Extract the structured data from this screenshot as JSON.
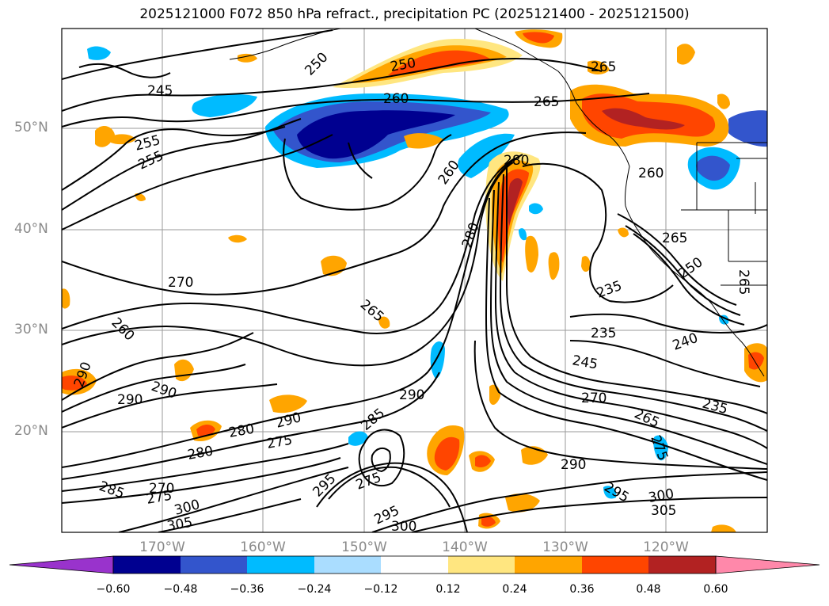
{
  "title": "2025121000 F072 850 hPa refract., precipitation PC (2025121400 - 2025121500)",
  "map": {
    "lat_labels": [
      "50°N",
      "40°N",
      "30°N",
      "20°N"
    ],
    "lon_labels": [
      "170°W",
      "160°W",
      "150°W",
      "140°W",
      "130°W",
      "120°W"
    ]
  },
  "contour_labels": [
    {
      "text": "245"
    },
    {
      "text": "250"
    },
    {
      "text": "250"
    },
    {
      "text": "255"
    },
    {
      "text": "255"
    },
    {
      "text": "260"
    },
    {
      "text": "265"
    },
    {
      "text": "265"
    },
    {
      "text": "260"
    },
    {
      "text": "280"
    },
    {
      "text": "280"
    },
    {
      "text": "270"
    },
    {
      "text": "265"
    },
    {
      "text": "260"
    },
    {
      "text": "265"
    },
    {
      "text": "250"
    },
    {
      "text": "265"
    },
    {
      "text": "235"
    },
    {
      "text": "235"
    },
    {
      "text": "240"
    },
    {
      "text": "245"
    },
    {
      "text": "270"
    },
    {
      "text": "265"
    },
    {
      "text": "235"
    },
    {
      "text": "275"
    },
    {
      "text": "290"
    },
    {
      "text": "295"
    },
    {
      "text": "290"
    },
    {
      "text": "290"
    },
    {
      "text": "290"
    },
    {
      "text": "280"
    },
    {
      "text": "275"
    },
    {
      "text": "285"
    },
    {
      "text": "290"
    },
    {
      "text": "280"
    },
    {
      "text": "275"
    },
    {
      "text": "285"
    },
    {
      "text": "270"
    },
    {
      "text": "275"
    },
    {
      "text": "300"
    },
    {
      "text": "305"
    },
    {
      "text": "295"
    },
    {
      "text": "300"
    },
    {
      "text": "290"
    },
    {
      "text": "295"
    },
    {
      "text": "300"
    },
    {
      "text": "305"
    },
    {
      "text": "260"
    }
  ],
  "colorbar": {
    "ticks": [
      "−0.60",
      "−0.48",
      "−0.36",
      "−0.24",
      "−0.12",
      "0.12",
      "0.24",
      "0.36",
      "0.48",
      "0.60"
    ],
    "colors": [
      "#9933cc",
      "#000090",
      "#3355cc",
      "#00bbff",
      "#aaddff",
      "#ffffff",
      "#ffe680",
      "#ffa500",
      "#ff4500",
      "#b22222",
      "#ff88aa"
    ]
  }
}
